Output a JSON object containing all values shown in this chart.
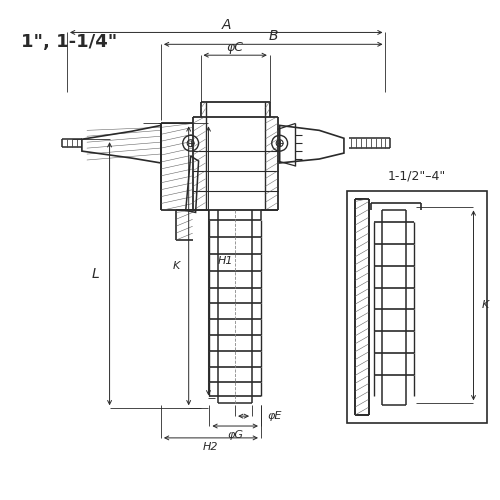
{
  "bg_color": "#ffffff",
  "line_color": "#2a2a2a",
  "hatch_color": "#555555",
  "label_size1": "1\", 1-1/4\"",
  "label_size2": "1-1/2\"–4\"",
  "fig_size": [
    5.0,
    5.0
  ],
  "dpi": 100,
  "dim_A_label": "A",
  "dim_B_label": "B",
  "dim_C_label": "φC",
  "dim_E_label": "φE",
  "dim_G_label": "φG",
  "dim_H1_label": "H1",
  "dim_H2_label": "H2",
  "dim_K_label": "K",
  "dim_L_label": "L"
}
